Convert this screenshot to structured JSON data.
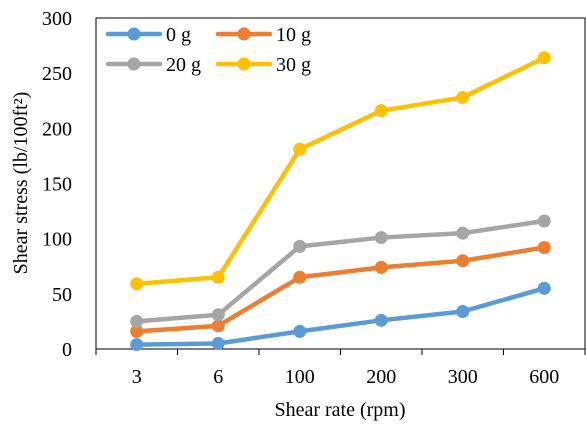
{
  "chart_data": {
    "type": "line",
    "categories": [
      "3",
      "6",
      "100",
      "200",
      "300",
      "600"
    ],
    "series": [
      {
        "name": "0 g",
        "color": "#5B9BD5",
        "values": [
          4,
          5,
          16,
          26,
          34,
          55
        ]
      },
      {
        "name": "10 g",
        "color": "#ED7D31",
        "values": [
          16,
          21,
          65,
          74,
          80,
          92
        ]
      },
      {
        "name": "20 g",
        "color": "#A5A5A5",
        "values": [
          25,
          31,
          93,
          101,
          105,
          116
        ]
      },
      {
        "name": "30 g",
        "color": "#FFC000",
        "values": [
          59,
          65,
          181,
          216,
          228,
          264
        ]
      }
    ],
    "xlabel": "Shear rate (rpm)",
    "ylabel": "Shear stress (lb/100ft²)",
    "ylim": [
      0,
      300
    ],
    "yticks": [
      "0",
      "50",
      "100",
      "150",
      "200",
      "250",
      "300"
    ],
    "grid": false,
    "legend_position": "top-left"
  }
}
